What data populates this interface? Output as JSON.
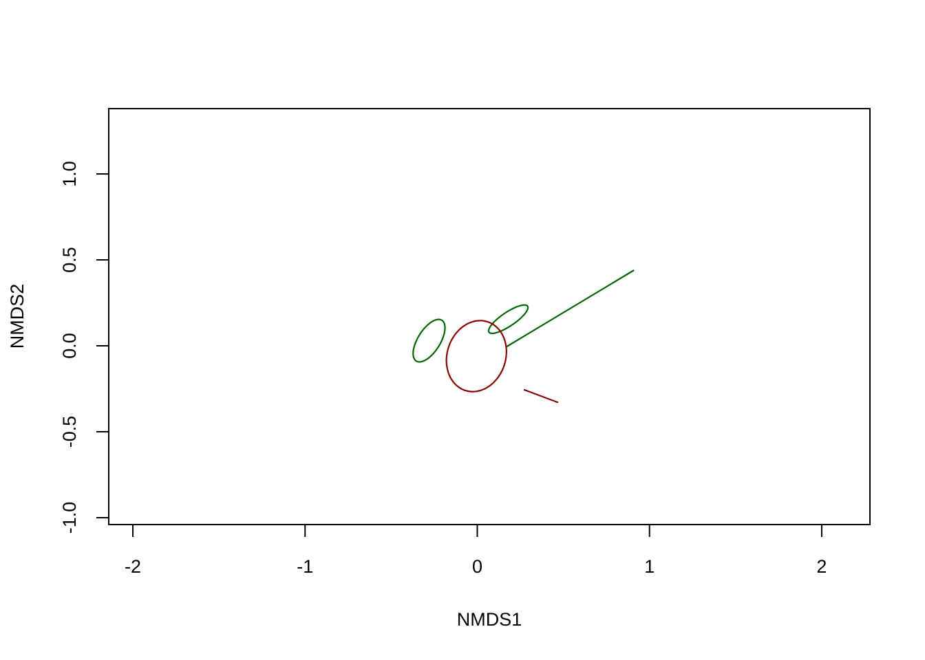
{
  "chart_data": {
    "type": "scatter",
    "title": "",
    "xlabel": "NMDS1",
    "ylabel": "NMDS2",
    "xlim": [
      -2.14,
      2.28
    ],
    "ylim": [
      -1.04,
      1.38
    ],
    "x_ticks": [
      {
        "value": -2,
        "label": "-2"
      },
      {
        "value": -1,
        "label": "-1"
      },
      {
        "value": 0,
        "label": "0"
      },
      {
        "value": 1,
        "label": "1"
      },
      {
        "value": 2,
        "label": "2"
      }
    ],
    "y_ticks": [
      {
        "value": -1.0,
        "label": "-1.0"
      },
      {
        "value": -0.5,
        "label": "-0.5"
      },
      {
        "value": 0.0,
        "label": "0.0"
      },
      {
        "value": 0.5,
        "label": "0.5"
      },
      {
        "value": 1.0,
        "label": "1.0"
      }
    ],
    "grid": false,
    "legend": "none",
    "colors": {
      "green": "#006400",
      "red": "#8b0000",
      "axis": "#000000"
    },
    "ellipses": [
      {
        "name": "green-ellipse-left",
        "color": "#006400",
        "cx": -0.28,
        "cy": 0.03,
        "a": 0.14,
        "b": 0.065,
        "angle_deg": 58
      },
      {
        "name": "green-ellipse-right",
        "color": "#006400",
        "cx": 0.18,
        "cy": 0.155,
        "a": 0.135,
        "b": 0.04,
        "angle_deg": 34
      },
      {
        "name": "red-ellipse",
        "color": "#8b0000",
        "cx": -0.005,
        "cy": -0.06,
        "a": 0.21,
        "b": 0.17,
        "angle_deg": 72
      }
    ],
    "segments": [
      {
        "name": "green-segment",
        "color": "#006400",
        "x": [
          0.17,
          0.91
        ],
        "y": [
          -0.005,
          0.44
        ]
      },
      {
        "name": "red-segment",
        "color": "#8b0000",
        "x": [
          0.27,
          0.47
        ],
        "y": [
          -0.255,
          -0.33
        ]
      }
    ]
  }
}
